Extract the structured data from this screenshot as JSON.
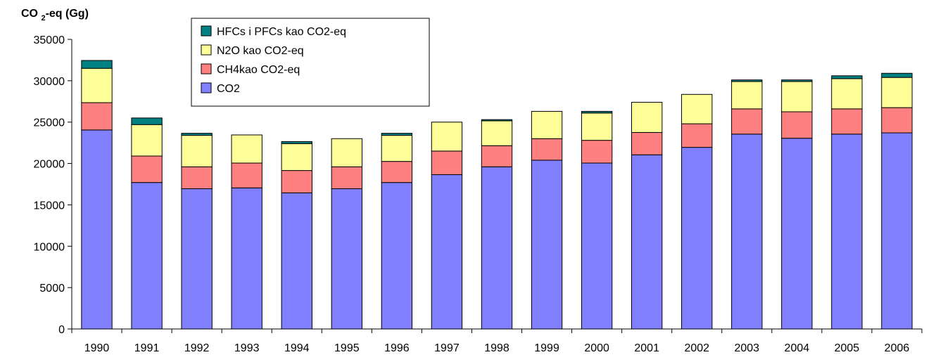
{
  "chart_data": {
    "type": "bar",
    "stacked": true,
    "ylabel": "CO 2-eq (Gg)",
    "ylabel_parts": {
      "main": "CO ",
      "sub": "2",
      "rest": "-eq (Gg)"
    },
    "ylim": [
      0,
      35000
    ],
    "yticks": [
      0,
      5000,
      10000,
      15000,
      20000,
      25000,
      30000,
      35000
    ],
    "grid": false,
    "legend_position": "top-left",
    "categories": [
      "1990",
      "1991",
      "1992",
      "1993",
      "1994",
      "1995",
      "1996",
      "1997",
      "1998",
      "1999",
      "2000",
      "2001",
      "2002",
      "2003",
      "2004",
      "2005",
      "2006"
    ],
    "series": [
      {
        "name": "CO2",
        "color": "#8080ff",
        "values": [
          24050,
          17700,
          16950,
          17050,
          16450,
          16950,
          17700,
          18650,
          19600,
          20400,
          20050,
          21050,
          21950,
          23550,
          23050,
          23550,
          23700
        ]
      },
      {
        "name": "CH4kao CO2-eq",
        "color": "#ff8080",
        "values": [
          3300,
          3200,
          2650,
          3000,
          2700,
          2650,
          2550,
          2850,
          2550,
          2600,
          2750,
          2700,
          2850,
          3050,
          3200,
          3050,
          3050
        ]
      },
      {
        "name": "N2O kao CO2-eq",
        "color": "#ffff99",
        "values": [
          4150,
          3800,
          3800,
          3400,
          3250,
          3400,
          3150,
          3500,
          3000,
          3300,
          3300,
          3650,
          3550,
          3300,
          3650,
          3650,
          3650
        ]
      },
      {
        "name": "HFCs i PFCs kao CO2-eq",
        "color": "#008080",
        "values": [
          950,
          800,
          250,
          0,
          250,
          0,
          250,
          0,
          150,
          0,
          200,
          0,
          0,
          200,
          200,
          350,
          500
        ]
      }
    ],
    "legend_order": [
      "HFCs i PFCs kao CO2-eq",
      "N2O kao CO2-eq",
      "CH4kao CO2-eq",
      "CO2"
    ]
  }
}
